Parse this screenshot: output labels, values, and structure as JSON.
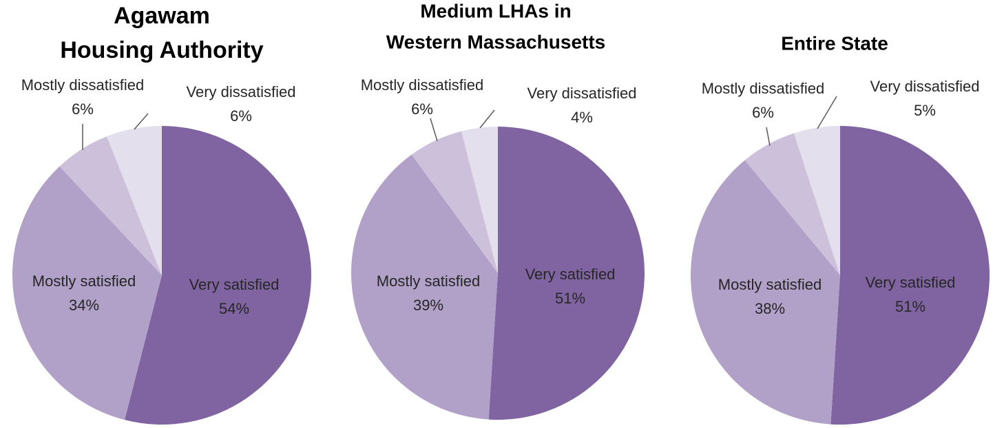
{
  "chart_data": [
    {
      "type": "pie",
      "title": [
        "Agawam",
        "Housing Authority"
      ],
      "categories": [
        "Very satisfied",
        "Mostly satisfied",
        "Mostly dissatisfied",
        "Very dissatisfied"
      ],
      "values": [
        54,
        34,
        6,
        6
      ],
      "value_labels": [
        "54%",
        "34%",
        "6%",
        "6%"
      ],
      "colors": [
        "#8064a2",
        "#b1a0c7",
        "#ccc0da",
        "#e4dfec"
      ]
    },
    {
      "type": "pie",
      "title": [
        "Medium LHAs in",
        "Western Massachusetts"
      ],
      "categories": [
        "Very satisfied",
        "Mostly satisfied",
        "Mostly dissatisfied",
        "Very dissatisfied"
      ],
      "values": [
        51,
        39,
        6,
        4
      ],
      "value_labels": [
        "51%",
        "39%",
        "6%",
        "4%"
      ],
      "colors": [
        "#8064a2",
        "#b1a0c7",
        "#ccc0da",
        "#e4dfec"
      ]
    },
    {
      "type": "pie",
      "title": [
        "Entire State"
      ],
      "categories": [
        "Very satisfied",
        "Mostly satisfied",
        "Mostly dissatisfied",
        "Very dissatisfied"
      ],
      "values": [
        51,
        38,
        6,
        5
      ],
      "value_labels": [
        "51%",
        "38%",
        "6%",
        "5%"
      ],
      "colors": [
        "#8064a2",
        "#b1a0c7",
        "#ccc0da",
        "#e4dfec"
      ]
    }
  ]
}
